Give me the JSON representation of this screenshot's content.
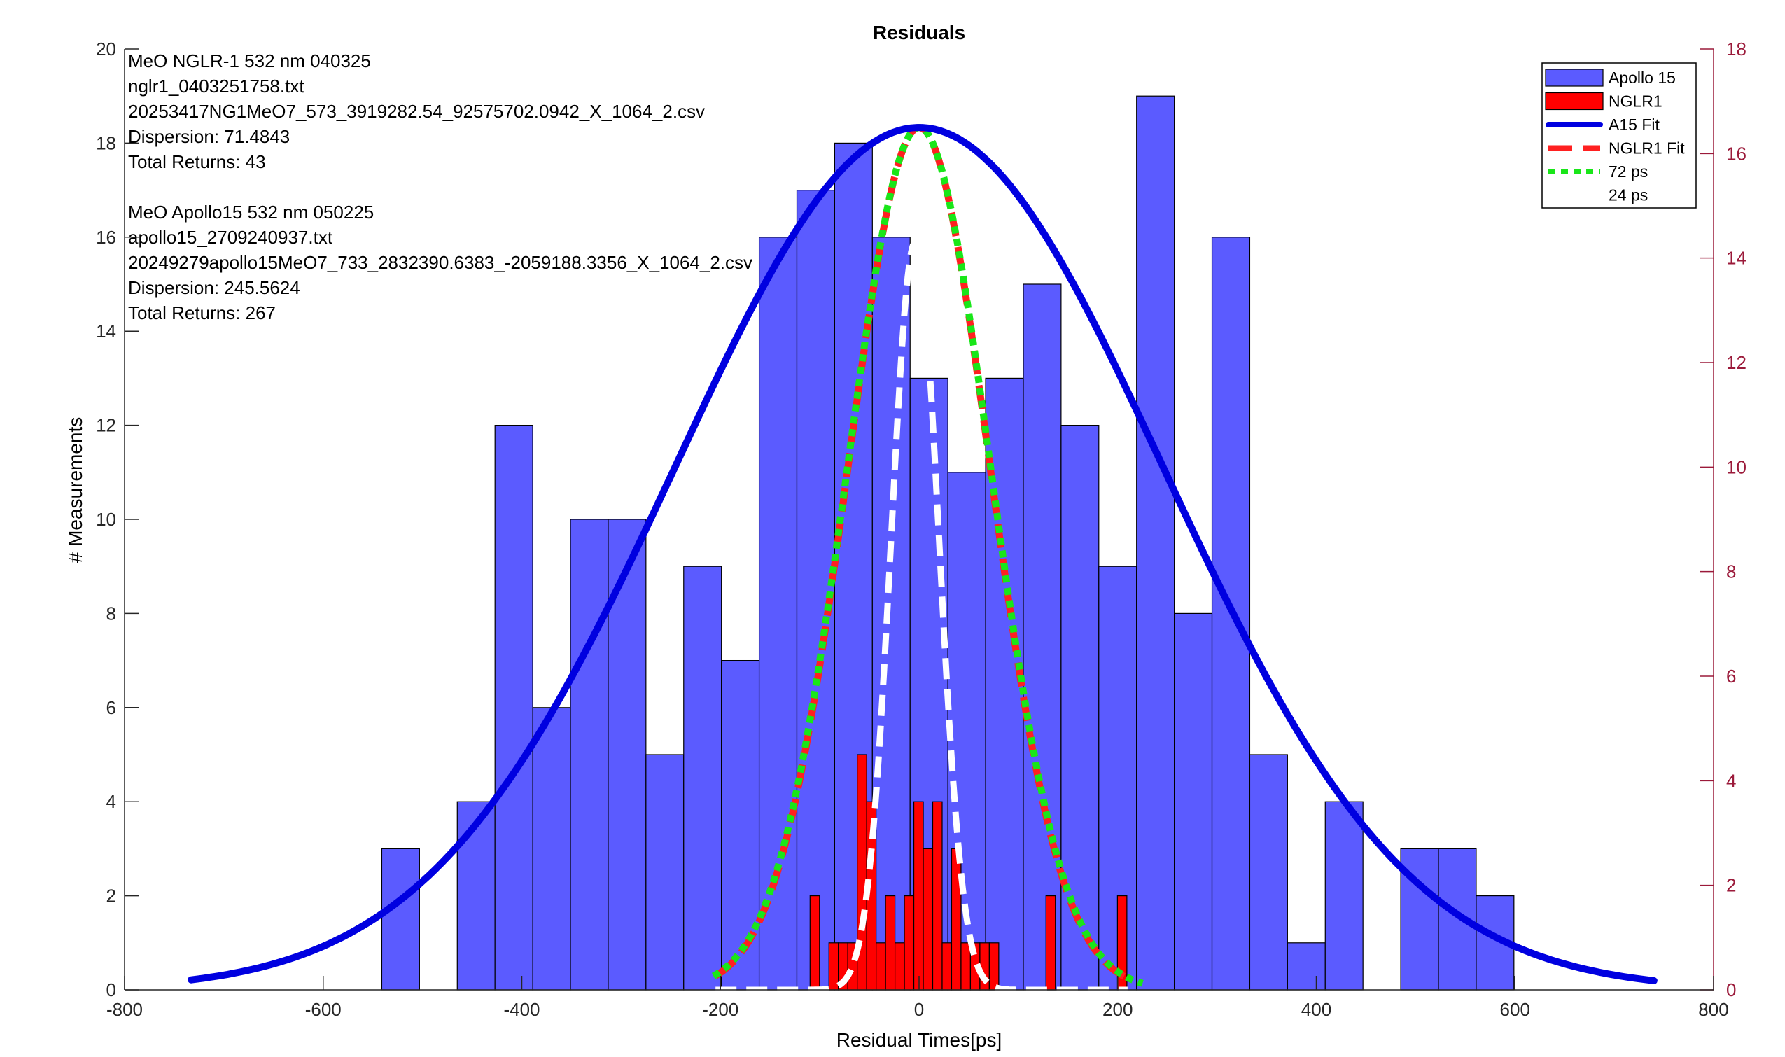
{
  "chart_data": {
    "type": "bar",
    "title": "Residuals",
    "xlabel": "Residual Times[ps]",
    "ylabel": "# Measurements",
    "xlim": [
      -800,
      800
    ],
    "ylim": [
      0,
      20
    ],
    "y2lim": [
      0,
      18
    ],
    "x_ticks": [
      -800,
      -600,
      -400,
      -200,
      0,
      200,
      400,
      600,
      800
    ],
    "y_ticks": [
      0,
      2,
      4,
      6,
      8,
      10,
      12,
      14,
      16,
      18,
      20
    ],
    "y2_ticks": [
      0,
      2,
      4,
      6,
      8,
      10,
      12,
      14,
      16,
      18
    ],
    "grid": false,
    "legend_position": "top-right",
    "colors": {
      "apollo15": "#5b5bff",
      "nglr1": "#ff0000",
      "a15_fit": "#0000e0",
      "nglr1_fit": "#ff2020",
      "fit72": "#19e619",
      "fit24": "#ffffff",
      "right_axis": "#9b1a3a"
    },
    "info_lines": [
      "MeO NGLR-1 532 nm 040325",
      "nglr1_0403251758.txt",
      "20253417NG1MeO7_573_3919282.54_92575702.0942_X_1064_2.csv",
      "Dispersion: 71.4843",
      "Total Returns: 43",
      "",
      "MeO Apollo15 532 nm 050225",
      "apollo15_2709240937.txt",
      "20249279apollo15MeO7_733_2832390.6383_-2059188.3356_X_1064_2.csv",
      "Dispersion: 245.5624",
      "Total Returns: 267"
    ],
    "series": [
      {
        "name": "Apollo 15",
        "type": "histogram",
        "axis": "left",
        "bin_width": 38,
        "bins": [
          {
            "x": -522,
            "y": 3
          },
          {
            "x": -446,
            "y": 4
          },
          {
            "x": -408,
            "y": 12
          },
          {
            "x": -370,
            "y": 6
          },
          {
            "x": -332,
            "y": 10
          },
          {
            "x": -294,
            "y": 10
          },
          {
            "x": -256,
            "y": 5
          },
          {
            "x": -218,
            "y": 9
          },
          {
            "x": -180,
            "y": 7
          },
          {
            "x": -142,
            "y": 16
          },
          {
            "x": -104,
            "y": 17
          },
          {
            "x": -66,
            "y": 18
          },
          {
            "x": -28,
            "y": 16
          },
          {
            "x": 10,
            "y": 13
          },
          {
            "x": 48,
            "y": 11
          },
          {
            "x": 86,
            "y": 13
          },
          {
            "x": 124,
            "y": 15
          },
          {
            "x": 162,
            "y": 12
          },
          {
            "x": 200,
            "y": 9
          },
          {
            "x": 238,
            "y": 19
          },
          {
            "x": 276,
            "y": 8
          },
          {
            "x": 314,
            "y": 16
          },
          {
            "x": 352,
            "y": 5
          },
          {
            "x": 390,
            "y": 1
          },
          {
            "x": 428,
            "y": 4
          },
          {
            "x": 504,
            "y": 3
          },
          {
            "x": 542,
            "y": 3
          },
          {
            "x": 580,
            "y": 2
          }
        ]
      },
      {
        "name": "NGLR1",
        "type": "histogram",
        "axis": "left",
        "bin_width": 9.5,
        "bins": [
          {
            "x": -105,
            "y": 2
          },
          {
            "x": -86,
            "y": 1
          },
          {
            "x": -76.5,
            "y": 1
          },
          {
            "x": -67,
            "y": 1
          },
          {
            "x": -57.5,
            "y": 5
          },
          {
            "x": -48,
            "y": 4
          },
          {
            "x": -38.5,
            "y": 1
          },
          {
            "x": -29,
            "y": 2
          },
          {
            "x": -19.5,
            "y": 1
          },
          {
            "x": -10,
            "y": 2
          },
          {
            "x": -0.5,
            "y": 4
          },
          {
            "x": 9,
            "y": 3
          },
          {
            "x": 18.5,
            "y": 4
          },
          {
            "x": 28,
            "y": 1
          },
          {
            "x": 37.5,
            "y": 3
          },
          {
            "x": 47,
            "y": 1
          },
          {
            "x": 56.5,
            "y": 1
          },
          {
            "x": 66,
            "y": 1
          },
          {
            "x": 75.5,
            "y": 1
          },
          {
            "x": 132.5,
            "y": 2
          },
          {
            "x": 204.5,
            "y": 2
          }
        ]
      },
      {
        "name": "A15 Fit",
        "type": "line",
        "axis": "right",
        "style": "solid",
        "mean": 0,
        "sigma": 245.5624,
        "amplitude": 16.5,
        "x_range": [
          -733,
          740
        ]
      },
      {
        "name": "NGLR1 Fit",
        "type": "line",
        "axis": "right",
        "style": "dashed",
        "mean": 0,
        "sigma": 71.4843,
        "amplitude": 16.5,
        "x_range": [
          -205,
          210
        ]
      },
      {
        "name": "72 ps",
        "type": "line",
        "axis": "right",
        "style": "dotted",
        "mean": 0,
        "sigma": 72,
        "amplitude": 16.5,
        "x_range": [
          -207,
          225
        ]
      },
      {
        "name": "24 ps",
        "type": "line",
        "axis": "right",
        "style": "dashed",
        "mean": -4,
        "sigma": 24,
        "amplitude": 14.3,
        "x_range": [
          -205,
          210
        ]
      }
    ]
  }
}
